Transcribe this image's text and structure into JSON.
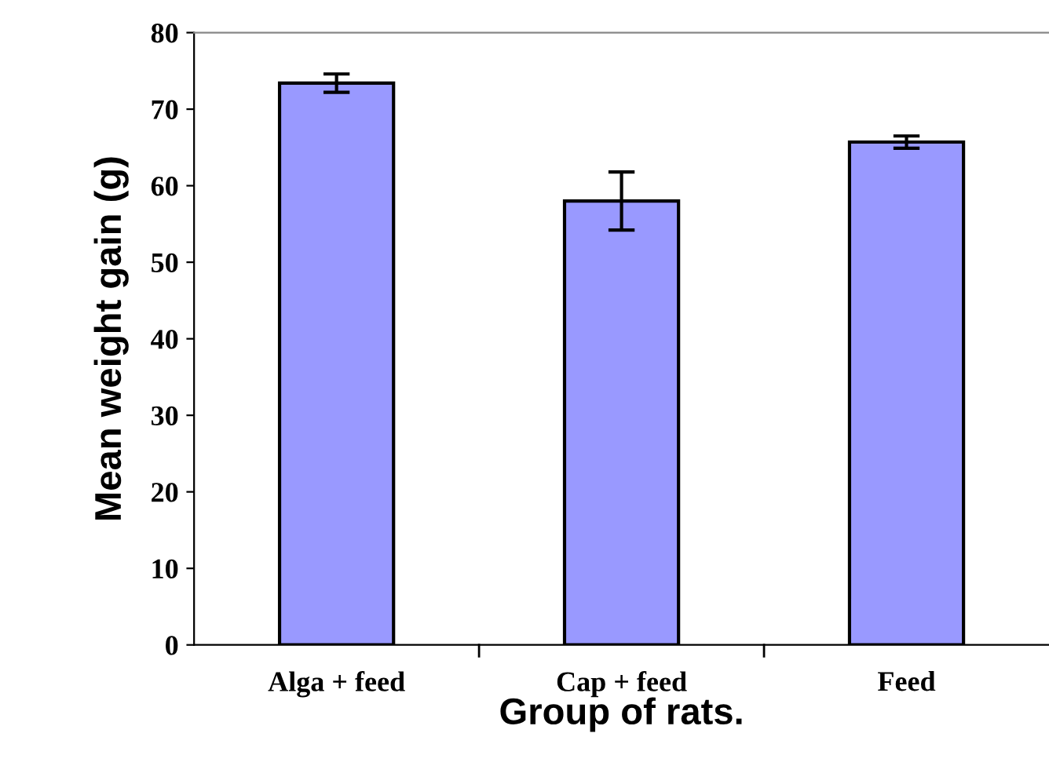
{
  "chart_data": {
    "type": "bar",
    "xlabel": "Group of rats.",
    "ylabel": "Mean weight gain (g)",
    "categories": [
      "Alga + feed",
      "Cap + feed",
      "Feed"
    ],
    "values": [
      73.4,
      58.0,
      65.7
    ],
    "errors": [
      1.2,
      3.8,
      0.8
    ],
    "color": "#9999ff",
    "ylim": [
      0,
      80
    ],
    "yticks": [
      0,
      10,
      20,
      30,
      40,
      50,
      60,
      70,
      80
    ],
    "grid": false
  }
}
